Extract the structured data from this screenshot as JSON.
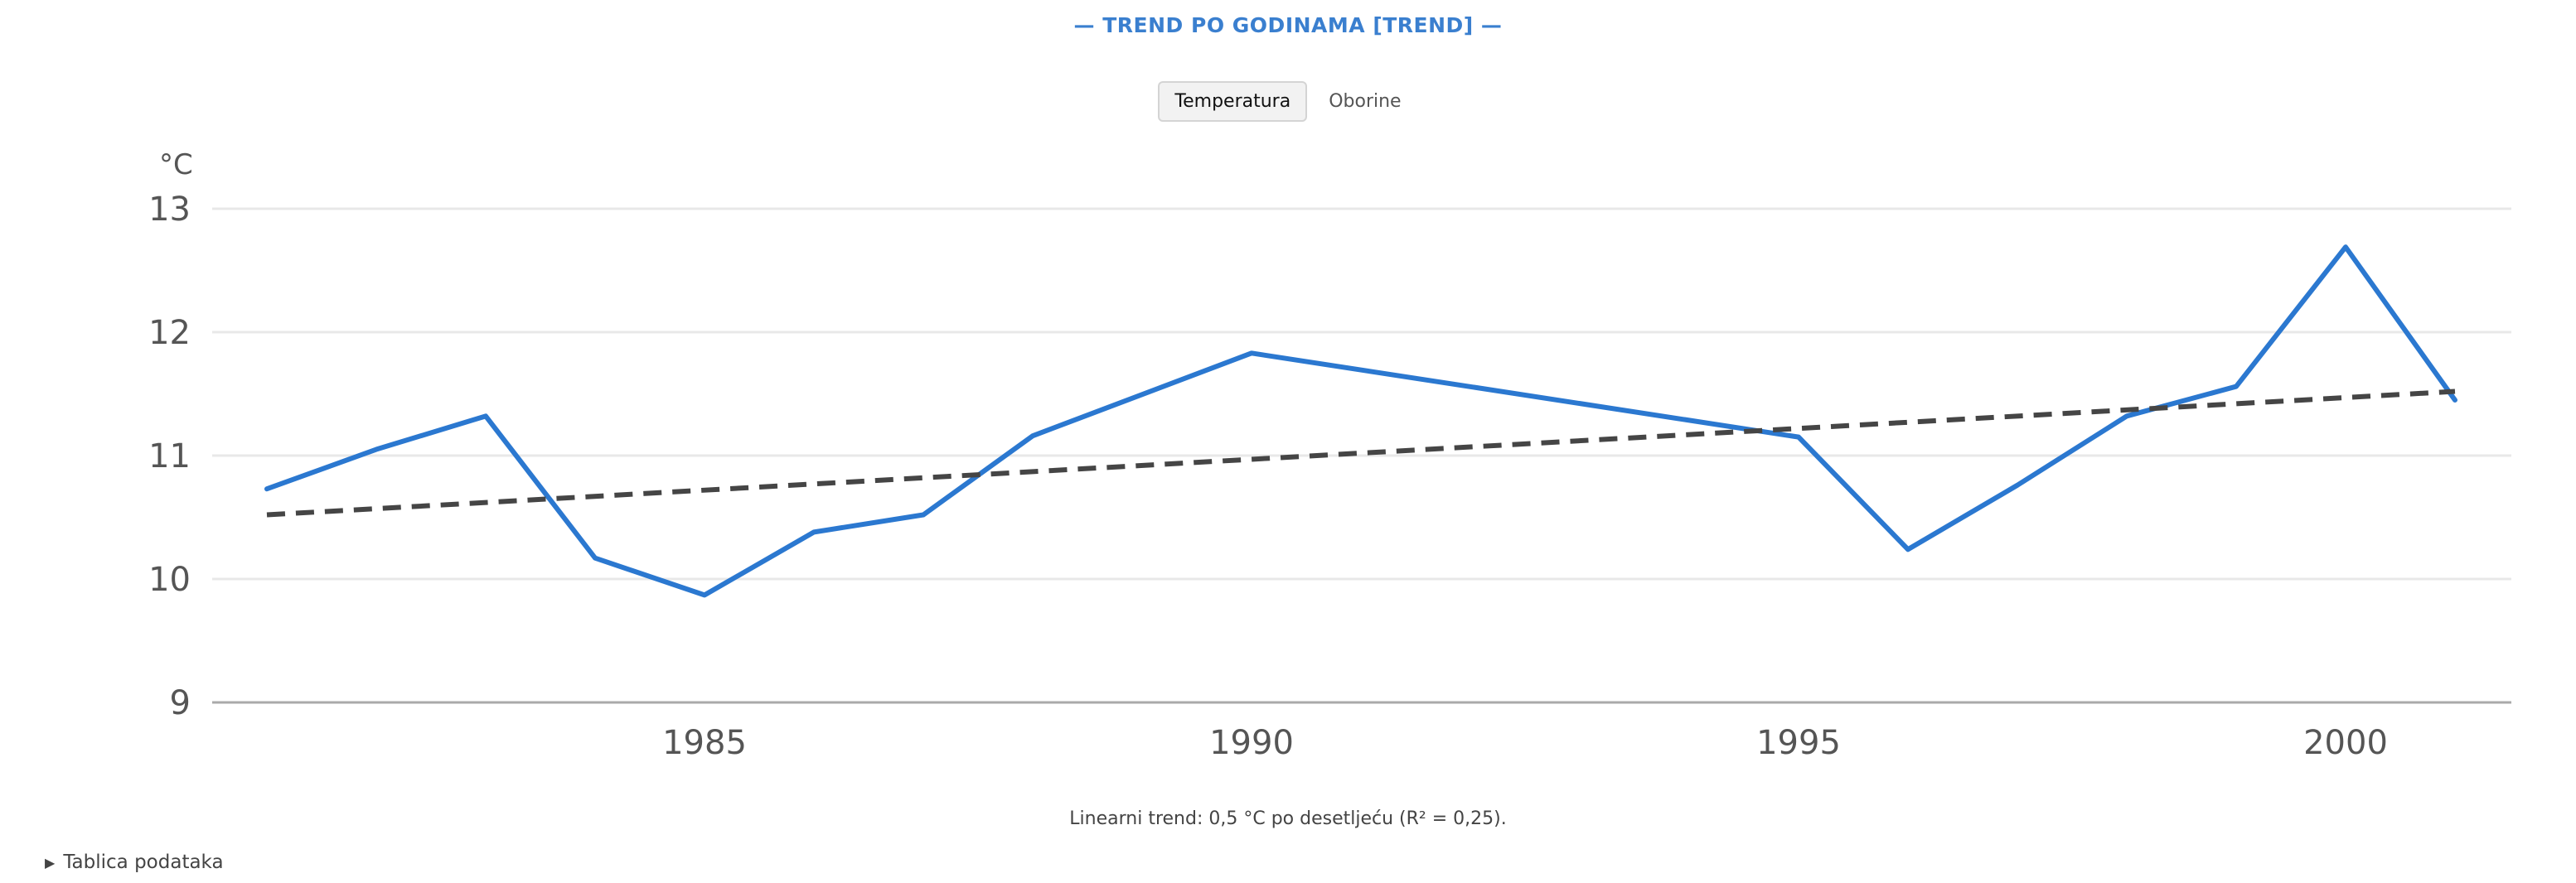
{
  "title": "— TREND PO GODINAMA [TREND] —",
  "tabs": [
    {
      "label": "Temperatura",
      "active": true
    },
    {
      "label": "Oborine",
      "active": false
    }
  ],
  "note": "Linearni trend: 0,5 °C po desetljeću (R² = 0,25).",
  "details_label": "Tablica podataka",
  "colors": {
    "series": "#2b78d0",
    "trend": "#454545",
    "grid": "#e8e8e8",
    "axis": "#aaaaaa",
    "title": "#3a7fcf"
  },
  "chart_data": {
    "type": "line",
    "title": "— TREND PO GODINAMA [TREND] —",
    "ylabel": "°C",
    "xlabel": "",
    "ylim": [
      9,
      13
    ],
    "xlim": [
      1981,
      2001
    ],
    "yticks": [
      "9",
      "10",
      "11",
      "12",
      "13"
    ],
    "xticks": [
      "1985",
      "1990",
      "1995",
      "2000"
    ],
    "grid": true,
    "x": [
      1981,
      1982,
      1983,
      1984,
      1985,
      1986,
      1987,
      1988,
      1990,
      1995,
      1996,
      1997,
      1998,
      1999,
      2000,
      2001
    ],
    "series": [
      {
        "values": [
          10.73,
          11.05,
          11.32,
          10.17,
          9.87,
          10.38,
          10.52,
          11.16,
          11.83,
          11.15,
          10.24,
          10.76,
          11.32,
          11.56,
          12.69,
          11.45
        ],
        "style": "solid"
      },
      {
        "values": [
          10.52,
          11.52
        ],
        "x": [
          1981,
          2001
        ],
        "style": "dashed"
      }
    ]
  }
}
